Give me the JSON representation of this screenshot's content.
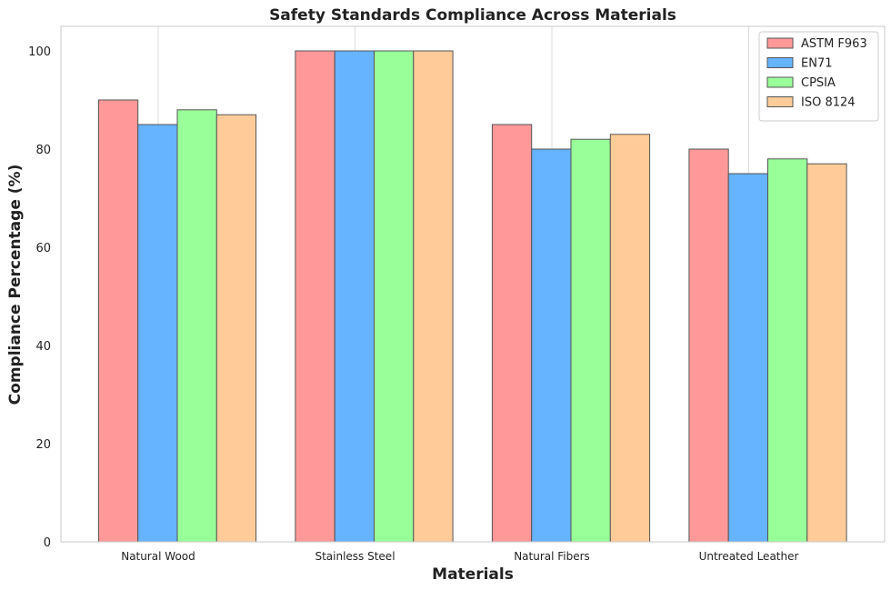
{
  "chart_data": {
    "type": "bar",
    "title": "Safety Standards Compliance Across Materials",
    "xlabel": "Materials",
    "ylabel": "Compliance Percentage (%)",
    "categories": [
      "Natural Wood",
      "Stainless Steel",
      "Natural Fibers",
      "Untreated Leather"
    ],
    "series": [
      {
        "name": "ASTM F963",
        "color": "#ff9999",
        "values": [
          90,
          100,
          85,
          80
        ]
      },
      {
        "name": "EN71",
        "color": "#66b3ff",
        "values": [
          85,
          100,
          80,
          75
        ]
      },
      {
        "name": "CPSIA",
        "color": "#99ff99",
        "values": [
          88,
          100,
          82,
          78
        ]
      },
      {
        "name": "ISO 8124",
        "color": "#ffcc99",
        "values": [
          87,
          100,
          83,
          77
        ]
      }
    ],
    "ylim": [
      0,
      105
    ],
    "yticks": [
      0,
      20,
      40,
      60,
      80,
      100
    ],
    "grid": true,
    "legend_position": "top-right"
  }
}
